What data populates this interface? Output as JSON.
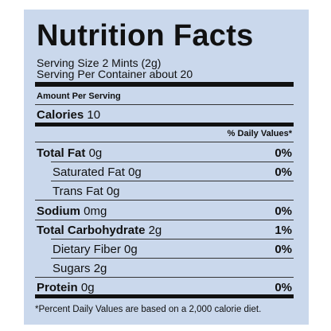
{
  "header": {
    "title": "Nutrition Facts"
  },
  "serving": {
    "size": "Serving Size 2 Mints  (2g)",
    "per_container": "Serving Per Container about 20"
  },
  "amount_per_serving": "Amount Per Serving",
  "calories": {
    "label": "Calories",
    "value": "10"
  },
  "daily_values_header": "% Daily Values*",
  "rows": [
    {
      "name": "Total Fat",
      "amount": "0g",
      "dv": "0%"
    },
    {
      "name": "Saturated Fat",
      "amount": "0g",
      "dv": "0%"
    },
    {
      "name": "Trans Fat",
      "amount": "0g"
    },
    {
      "name": "Sodium",
      "amount": "0mg",
      "dv": "0%"
    },
    {
      "name": "Total Carbohydrate",
      "amount": "2g",
      "dv": "1%"
    },
    {
      "name": "Dietary Fiber",
      "amount": "0g",
      "dv": "0%"
    },
    {
      "name": "Sugars",
      "amount": "2g"
    },
    {
      "name": "Protein",
      "amount": "0g",
      "dv": "0%"
    }
  ],
  "footnote": "*Percent Daily Values are based on a 2,000 calorie diet."
}
